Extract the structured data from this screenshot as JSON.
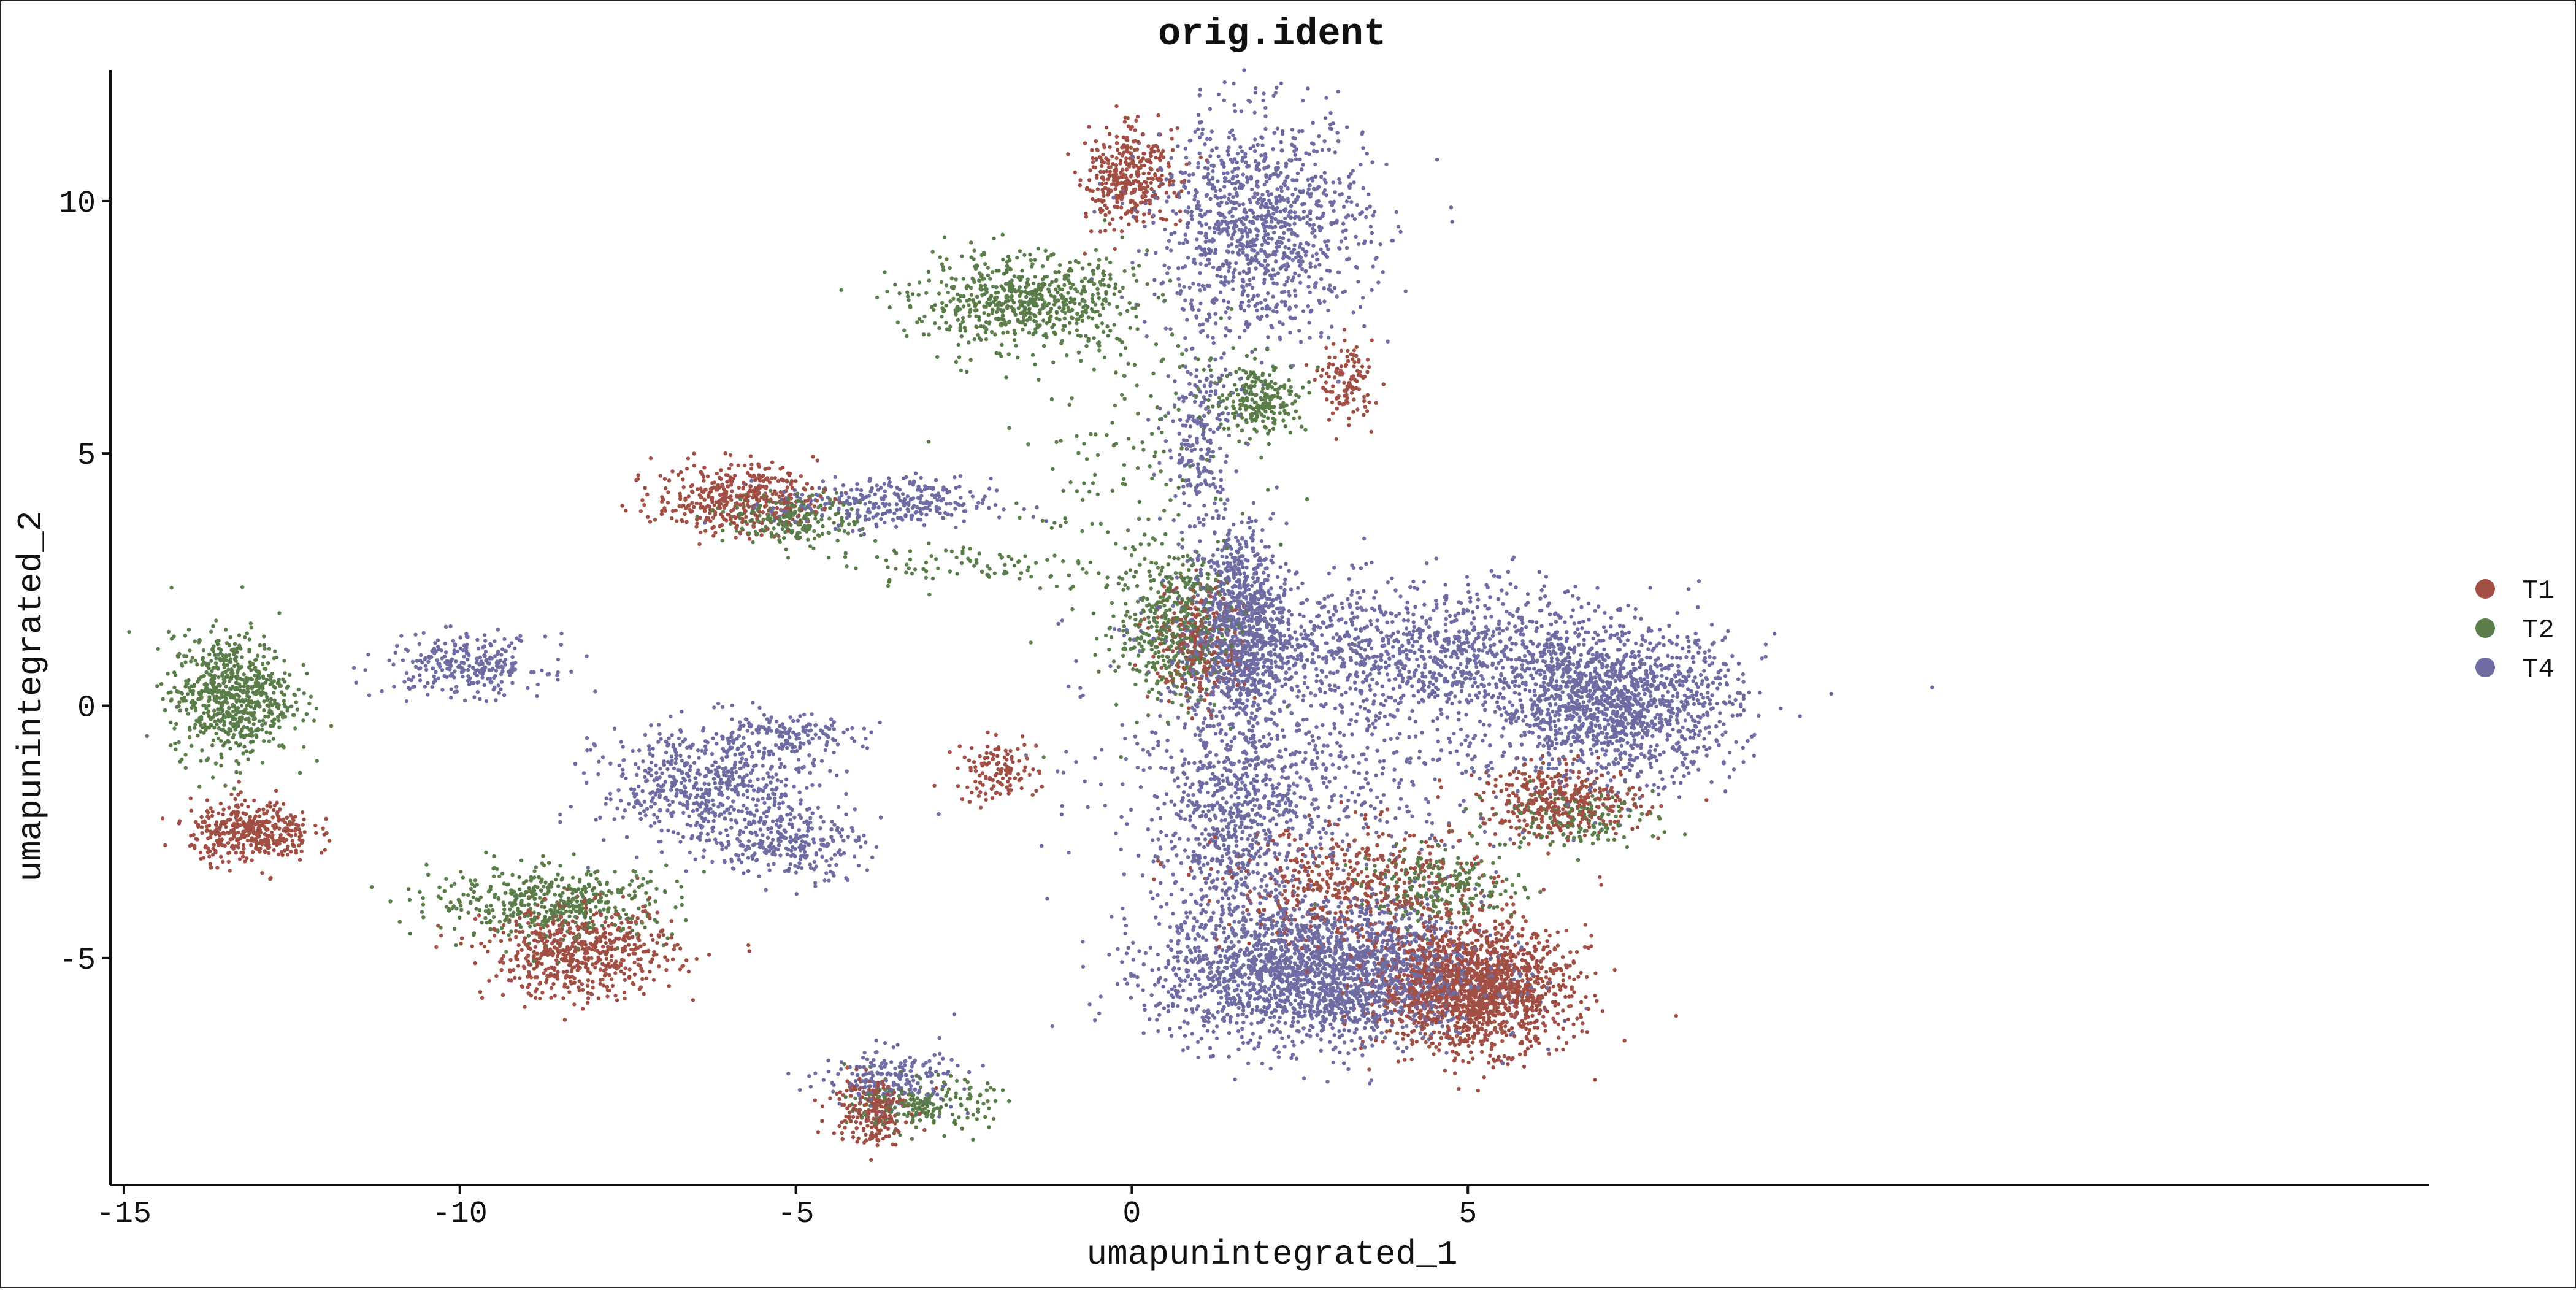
{
  "chart_data": {
    "type": "scatter",
    "title": "orig.ident",
    "xlabel": "umapunintegrated_1",
    "ylabel": "umapunintegrated_2",
    "xlim": [
      -15.2,
      19.3
    ],
    "ylim": [
      -9.5,
      12.6
    ],
    "xticks": [
      -15,
      -10,
      -5,
      0,
      5
    ],
    "yticks": [
      -5,
      0,
      5,
      10
    ],
    "legend_position": "right",
    "grid": false,
    "series": [
      {
        "name": "T1",
        "color": "#A14F44"
      },
      {
        "name": "T2",
        "color": "#5A7D4A"
      },
      {
        "name": "T4",
        "color": "#6F6CA3"
      }
    ],
    "clusters": [
      {
        "series": "T1",
        "cx": 0.0,
        "cy": 10.5,
        "sx": 0.35,
        "sy": 0.5,
        "n": 350
      },
      {
        "series": "T2",
        "cx": -1.6,
        "cy": 8.0,
        "sx": 0.8,
        "sy": 0.45,
        "n": 650
      },
      {
        "series": "T2",
        "cx": 1.9,
        "cy": 6.1,
        "sx": 0.35,
        "sy": 0.35,
        "n": 230
      },
      {
        "series": "T1",
        "cx": 3.2,
        "cy": 6.4,
        "sx": 0.2,
        "sy": 0.4,
        "n": 120
      },
      {
        "series": "T4",
        "cx": 1.9,
        "cy": 9.5,
        "sx": 0.8,
        "sy": 1.1,
        "n": 1100
      },
      {
        "series": "T4",
        "cx": 1.0,
        "cy": 5.3,
        "sx": 0.25,
        "sy": 1.0,
        "n": 230
      },
      {
        "series": "T1",
        "cx": -5.9,
        "cy": 4.1,
        "sx": 0.6,
        "sy": 0.35,
        "n": 420
      },
      {
        "series": "T2",
        "cx": -5.0,
        "cy": 3.7,
        "sx": 0.5,
        "sy": 0.25,
        "n": 220
      },
      {
        "series": "T4",
        "cx": -3.7,
        "cy": 4.0,
        "sx": 0.8,
        "sy": 0.25,
        "n": 300
      },
      {
        "series": "T2",
        "cx": -2.5,
        "cy": 2.8,
        "sx": 1.0,
        "sy": 0.25,
        "n": 80
      },
      {
        "series": "T2",
        "cx": -13.4,
        "cy": 0.2,
        "sx": 0.45,
        "sy": 0.6,
        "n": 720
      },
      {
        "series": "T1",
        "cx": -13.1,
        "cy": -2.5,
        "sx": 0.45,
        "sy": 0.3,
        "n": 400
      },
      {
        "series": "T4",
        "cx": -9.9,
        "cy": 0.8,
        "sx": 0.6,
        "sy": 0.3,
        "n": 280
      },
      {
        "series": "T4",
        "cx": -6.3,
        "cy": -1.6,
        "sx": 0.8,
        "sy": 0.6,
        "n": 600
      },
      {
        "series": "T4",
        "cx": -5.1,
        "cy": -2.7,
        "sx": 0.55,
        "sy": 0.35,
        "n": 250
      },
      {
        "series": "T4",
        "cx": -5.2,
        "cy": -0.6,
        "sx": 0.6,
        "sy": 0.2,
        "n": 150
      },
      {
        "series": "T2",
        "cx": -8.6,
        "cy": -3.9,
        "sx": 0.9,
        "sy": 0.35,
        "n": 460
      },
      {
        "series": "T1",
        "cx": -8.2,
        "cy": -4.9,
        "sx": 0.7,
        "sy": 0.45,
        "n": 600
      },
      {
        "series": "T1",
        "cx": -2.0,
        "cy": -1.3,
        "sx": 0.3,
        "sy": 0.3,
        "n": 120
      },
      {
        "series": "T1",
        "cx": -3.9,
        "cy": -8.0,
        "sx": 0.3,
        "sy": 0.35,
        "n": 220
      },
      {
        "series": "T2",
        "cx": -3.1,
        "cy": -7.9,
        "sx": 0.5,
        "sy": 0.25,
        "n": 200
      },
      {
        "series": "T4",
        "cx": -3.6,
        "cy": -7.4,
        "sx": 0.5,
        "sy": 0.3,
        "n": 200
      },
      {
        "series": "T2",
        "cx": 0.6,
        "cy": 1.6,
        "sx": 0.4,
        "sy": 0.7,
        "n": 420
      },
      {
        "series": "T1",
        "cx": 1.0,
        "cy": 1.2,
        "sx": 0.35,
        "sy": 0.6,
        "n": 250
      },
      {
        "series": "T4",
        "cx": 1.6,
        "cy": 1.6,
        "sx": 0.35,
        "sy": 1.0,
        "n": 900
      },
      {
        "series": "T4",
        "cx": 4.2,
        "cy": 1.0,
        "sx": 1.8,
        "sy": 0.7,
        "n": 1300
      },
      {
        "series": "T4",
        "cx": 7.2,
        "cy": 0.0,
        "sx": 0.9,
        "sy": 0.7,
        "n": 1300
      },
      {
        "series": "T1",
        "cx": 6.4,
        "cy": -1.9,
        "sx": 0.6,
        "sy": 0.35,
        "n": 380
      },
      {
        "series": "T2",
        "cx": 6.6,
        "cy": -2.2,
        "sx": 0.6,
        "sy": 0.3,
        "n": 150
      },
      {
        "series": "T4",
        "cx": 1.5,
        "cy": -2.5,
        "sx": 0.5,
        "sy": 1.2,
        "n": 600
      },
      {
        "series": "T4",
        "cx": 2.8,
        "cy": -5.3,
        "sx": 1.2,
        "sy": 0.7,
        "n": 2200
      },
      {
        "series": "T1",
        "cx": 5.1,
        "cy": -5.6,
        "sx": 0.7,
        "sy": 0.6,
        "n": 1600
      },
      {
        "series": "T1",
        "cx": 3.4,
        "cy": -3.6,
        "sx": 1.0,
        "sy": 0.6,
        "n": 500
      },
      {
        "series": "T2",
        "cx": 4.6,
        "cy": -3.6,
        "sx": 0.6,
        "sy": 0.35,
        "n": 220
      },
      {
        "series": "T4",
        "cx": 2.5,
        "cy": -1.5,
        "sx": 1.5,
        "sy": 1.0,
        "n": 500
      },
      {
        "series": "T2",
        "cx": 0.0,
        "cy": 4.5,
        "sx": 1.0,
        "sy": 2.0,
        "n": 200
      }
    ]
  }
}
